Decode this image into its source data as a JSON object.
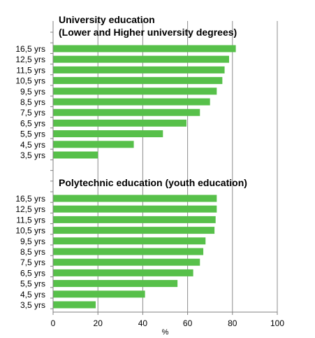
{
  "chart_data": {
    "type": "bar",
    "orientation": "horizontal",
    "xlabel": "%",
    "xlim": [
      0,
      100
    ],
    "x_ticks": [
      0,
      20,
      40,
      60,
      80,
      100
    ],
    "grid": "vertical",
    "bar_color": "#57c04a",
    "groups": [
      {
        "title_lines": [
          "University education",
          "(Lower and Higher university degrees)"
        ],
        "categories": [
          "16,5 yrs",
          "12,5 yrs",
          "11,5 yrs",
          "10,5 yrs",
          "9,5 yrs",
          "8,5 yrs",
          "7,5 yrs",
          "6,5 yrs",
          "5,5 yrs",
          "4,5 yrs",
          "3,5 yrs"
        ],
        "values": [
          81.5,
          78.5,
          76.5,
          75.5,
          73,
          70,
          65.5,
          59.5,
          49,
          36,
          20
        ]
      },
      {
        "title_lines": [
          "Polytechnic education (youth education)"
        ],
        "categories": [
          "16,5 yrs",
          "12,5 yrs",
          "11,5 yrs",
          "10,5 yrs",
          "9,5 yrs",
          "8,5 yrs",
          "7,5 yrs",
          "6,5 yrs",
          "5,5 yrs",
          "4,5 yrs",
          "3,5 yrs"
        ],
        "values": [
          73,
          73,
          72.5,
          72,
          68,
          67,
          65.5,
          62.5,
          55.5,
          41,
          19
        ]
      }
    ]
  }
}
